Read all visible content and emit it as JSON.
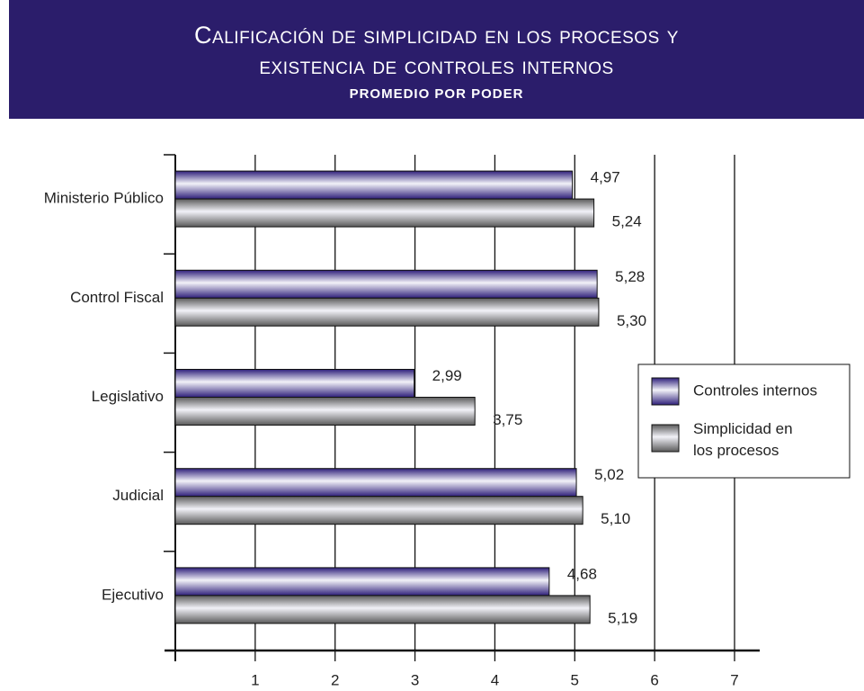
{
  "chart_data": {
    "type": "hbar",
    "title": "Calificación de simplicidad en los procesos y existencia de controles internos",
    "subtitle": "PROMEDIO POR PODER",
    "categories": [
      "Ministerio Público",
      "Control Fiscal",
      "Legislativo",
      "Judicial",
      "Ejecutivo"
    ],
    "series": [
      {
        "name": "Controles internos",
        "color": "#2e1f7a",
        "values": [
          4.97,
          5.28,
          2.99,
          5.02,
          4.68
        ],
        "value_labels": [
          "4,97",
          "5,28",
          "2,99",
          "5,02",
          "4,68"
        ]
      },
      {
        "name": "Simplicidad en los procesos",
        "color": "#5a5a5a",
        "values": [
          5.24,
          5.3,
          3.75,
          5.1,
          5.19
        ],
        "value_labels": [
          "5,24",
          "5,30",
          "3,75",
          "5,10",
          "5,19"
        ]
      }
    ],
    "xlim": [
      0,
      7
    ],
    "xticks": [
      1,
      2,
      3,
      4,
      5,
      6,
      7
    ],
    "grid": true,
    "legend": "right"
  }
}
